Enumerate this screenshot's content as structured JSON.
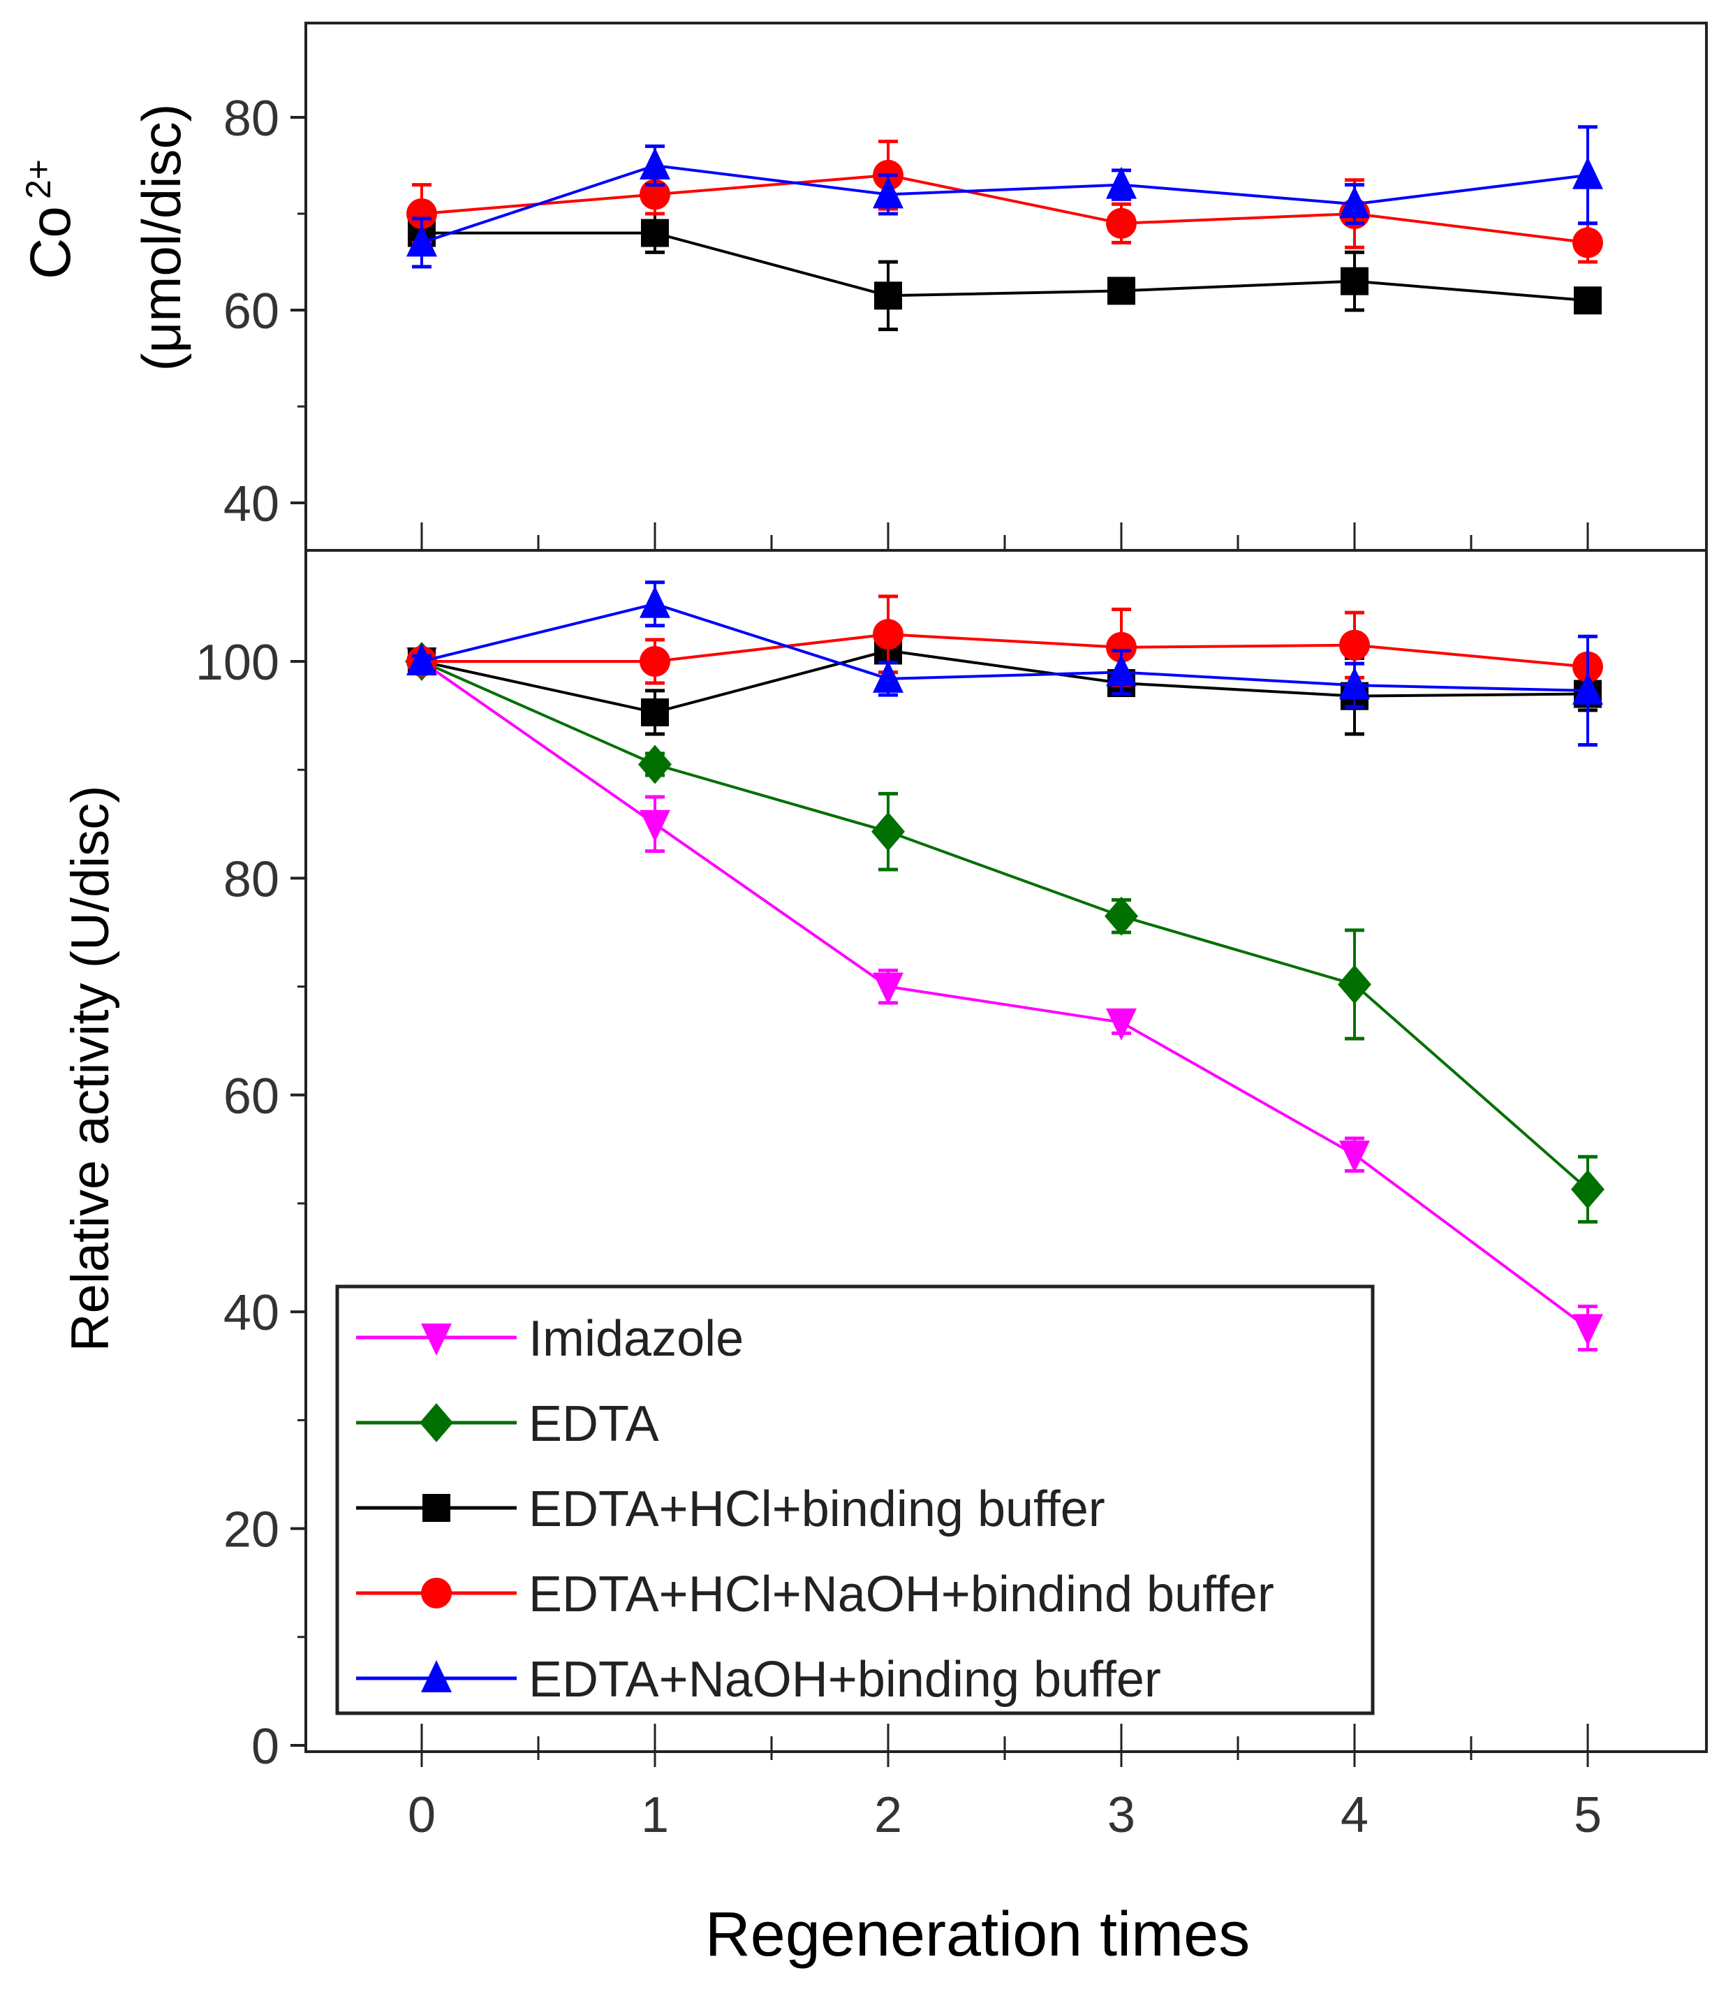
{
  "chart_data": [
    {
      "type": "line",
      "panel": "top",
      "ylabel_line1": "Co",
      "ylabel_sup": "2+",
      "ylabel_line2": "(μmol/disc)",
      "ylim": [
        35,
        88
      ],
      "yticks": [
        40,
        60,
        80
      ],
      "x": [
        0,
        1,
        2,
        3,
        4,
        5
      ],
      "series": [
        {
          "name": "EDTA+HCl+binding buffer",
          "color": "#000000",
          "marker": "square",
          "values": [
            68,
            68,
            61.5,
            62,
            63,
            61
          ],
          "errors": [
            1.5,
            2,
            3.5,
            1,
            3,
            1
          ]
        },
        {
          "name": "EDTA+HCl+NaOH+bindind buffer",
          "color": "#ff0000",
          "marker": "circle",
          "values": [
            70,
            72,
            74,
            69,
            70,
            67
          ],
          "errors": [
            3,
            2,
            3.5,
            2,
            3.5,
            2
          ]
        },
        {
          "name": "EDTA+NaOH+binding buffer",
          "color": "#0000ff",
          "marker": "triangle-up",
          "values": [
            67,
            75,
            72,
            73,
            71,
            74
          ],
          "errors": [
            2.5,
            2,
            2,
            1.5,
            2,
            5
          ]
        }
      ]
    },
    {
      "type": "line",
      "panel": "bottom",
      "xlabel": "Regeneration times",
      "ylabel": "Relative activity (U/disc)",
      "xlim": [
        -0.5,
        5.5
      ],
      "ylim": [
        0,
        110
      ],
      "xticks": [
        0,
        1,
        2,
        3,
        4,
        5
      ],
      "yticks": [
        0,
        20,
        40,
        60,
        80,
        100
      ],
      "x": [
        0,
        1,
        2,
        3,
        4,
        5
      ],
      "legend_position": "bottom-left",
      "series": [
        {
          "name": "Imidazole",
          "color": "#ff00ff",
          "marker": "triangle-down",
          "values": [
            100,
            85,
            70,
            66.7,
            54.5,
            38.5
          ],
          "errors": [
            1,
            2.5,
            1.5,
            1,
            1.5,
            2
          ]
        },
        {
          "name": "EDTA",
          "color": "#007000",
          "marker": "diamond",
          "values": [
            100,
            90.5,
            84.3,
            76.5,
            70.2,
            51.3
          ],
          "errors": [
            1,
            1,
            3.5,
            1.5,
            5,
            3
          ]
        },
        {
          "name": "EDTA+HCl+binding buffer",
          "color": "#000000",
          "marker": "square",
          "values": [
            100,
            95.3,
            101,
            98,
            96.8,
            97
          ],
          "errors": [
            0.5,
            2,
            2,
            1,
            3.5,
            1.5
          ]
        },
        {
          "name": "EDTA+HCl+NaOH+bindind buffer",
          "color": "#ff0000",
          "marker": "circle",
          "values": [
            100,
            100,
            102.5,
            101.3,
            101.5,
            99.5
          ],
          "errors": [
            0.5,
            2,
            3.5,
            3.5,
            3,
            1
          ]
        },
        {
          "name": "EDTA+NaOH+binding buffer",
          "color": "#0000ff",
          "marker": "triangle-up",
          "values": [
            100,
            105.3,
            98.4,
            99,
            97.8,
            97.3
          ],
          "errors": [
            0.5,
            2,
            1.5,
            2,
            2,
            5
          ]
        }
      ]
    }
  ]
}
